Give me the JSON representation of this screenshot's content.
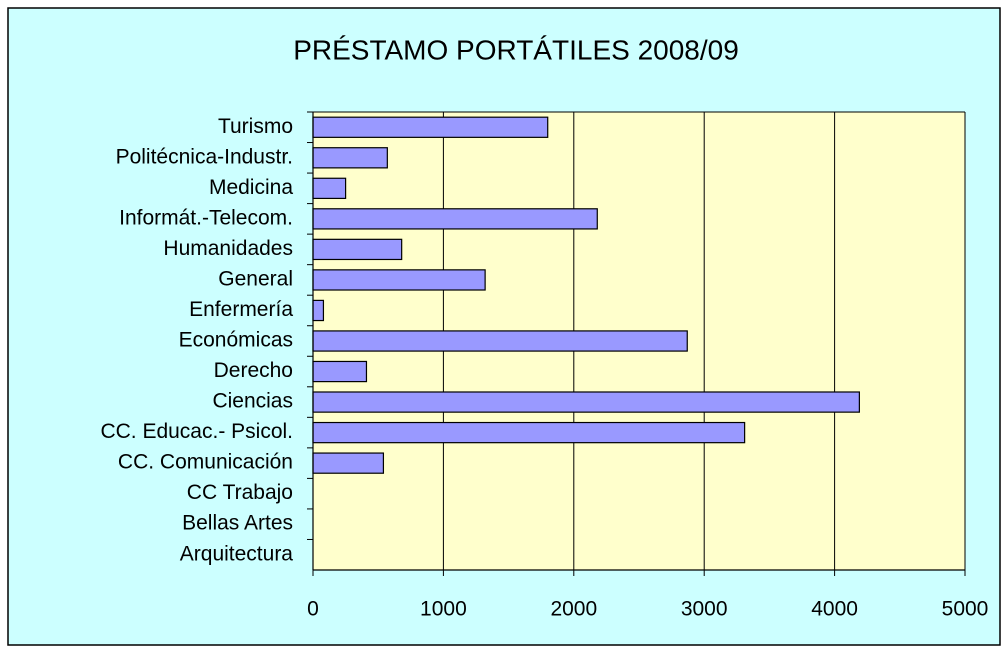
{
  "chart_data": {
    "type": "bar",
    "orientation": "horizontal",
    "title": "PRÉSTAMO PORTÁTILES 2008/09",
    "categories": [
      "Turismo",
      "Politécnica-Industr.",
      "Medicina",
      "Informát.-Telecom.",
      "Humanidades",
      "General",
      "Enfermería",
      "Económicas",
      "Derecho",
      "Ciencias",
      "CC. Educac.- Psicol.",
      "CC. Comunicación",
      "CC Trabajo",
      "Bellas Artes",
      "Arquitectura"
    ],
    "values": [
      1800,
      570,
      250,
      2180,
      680,
      1320,
      80,
      2870,
      410,
      4190,
      3310,
      540,
      0,
      0,
      0
    ],
    "color": "#9999ff",
    "xlim": [
      0,
      5000
    ],
    "xticks": [
      0,
      1000,
      2000,
      3000,
      4000,
      5000
    ],
    "grid": true
  }
}
